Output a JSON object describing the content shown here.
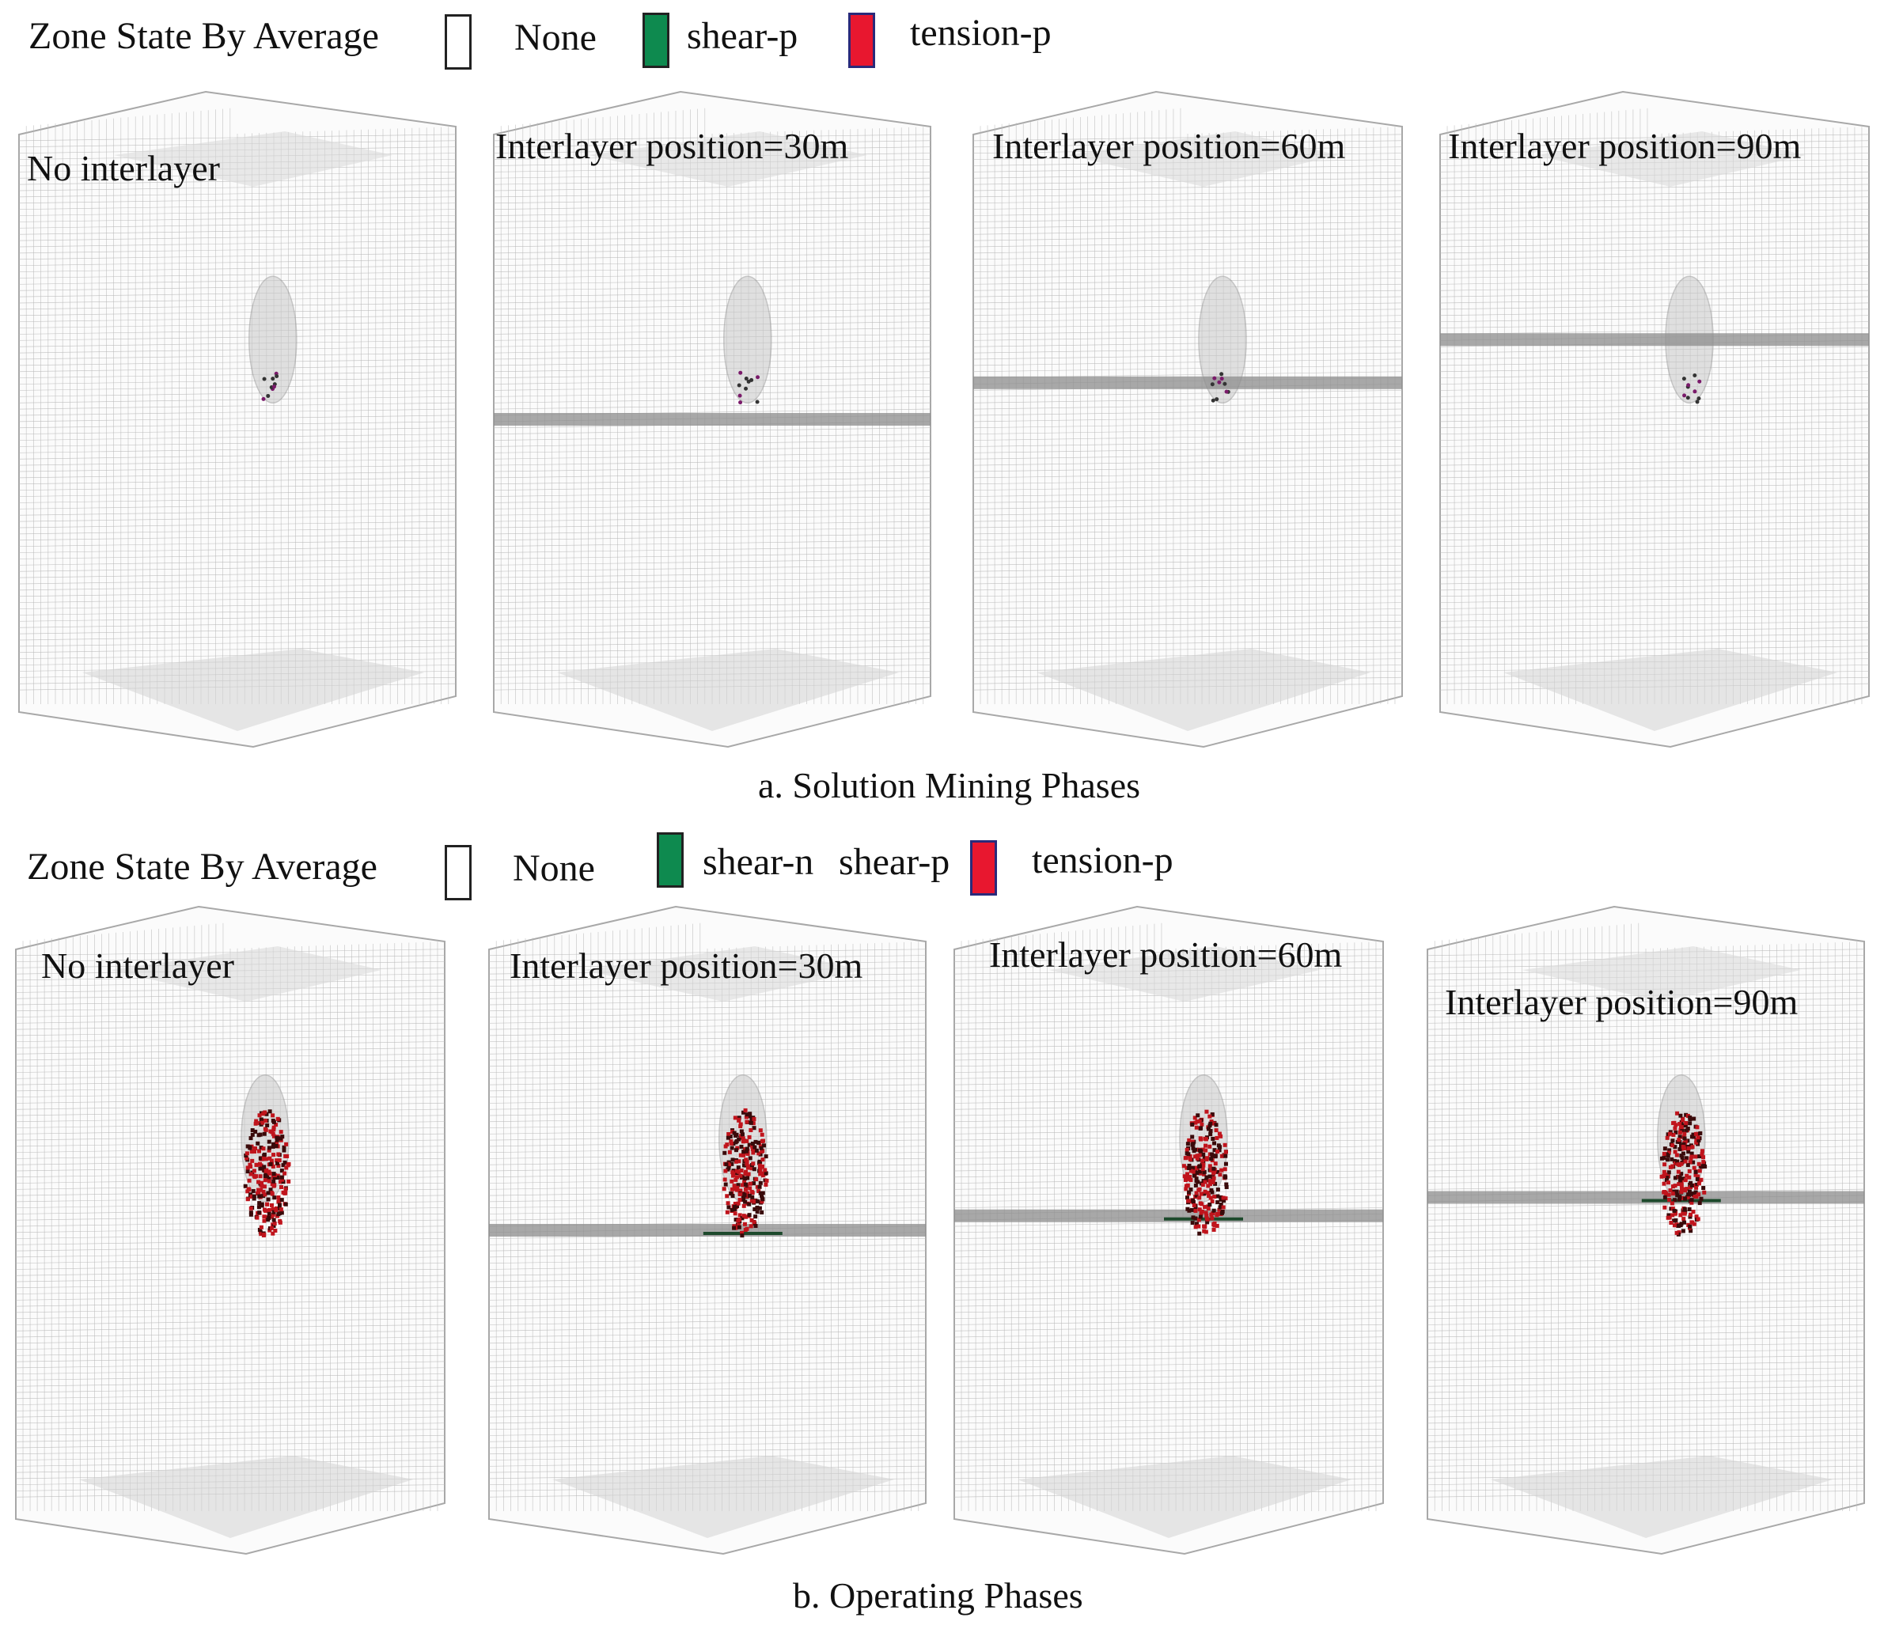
{
  "row_a": {
    "legend": {
      "title": "Zone State By Average",
      "items": [
        {
          "label": "None",
          "color": "#ffffff"
        },
        {
          "label": "shear-p",
          "color": "#0e8a4f"
        },
        {
          "label": "tension-p",
          "color": "#e8172f"
        }
      ]
    },
    "panels": [
      {
        "label": "No interlayer",
        "interlayer": false,
        "damage": "sparse"
      },
      {
        "label": "Interlayer position=30m",
        "interlayer": true,
        "damage": "sparse"
      },
      {
        "label": "Interlayer position=60m",
        "interlayer": true,
        "damage": "sparse"
      },
      {
        "label": "Interlayer position=90m",
        "interlayer": true,
        "damage": "sparse"
      }
    ],
    "caption": "a. Solution Mining Phases"
  },
  "row_b": {
    "legend": {
      "title": "Zone State By Average",
      "items": [
        {
          "label": "None",
          "color": "#ffffff"
        },
        {
          "label": "shear-n",
          "color": "#0e8a4f"
        },
        {
          "label": "shear-p",
          "color": ""
        },
        {
          "label": "tension-p",
          "color": "#e8172f"
        }
      ]
    },
    "panels": [
      {
        "label": "No interlayer",
        "interlayer": false,
        "damage": "dense"
      },
      {
        "label": "Interlayer position=30m",
        "interlayer": true,
        "damage": "dense"
      },
      {
        "label": "Interlayer position=60m",
        "interlayer": true,
        "damage": "dense"
      },
      {
        "label": "Interlayer position=90m",
        "interlayer": true,
        "damage": "dense"
      }
    ],
    "caption": "b. Operating Phases"
  },
  "colors": {
    "mesh": "#b9b9b9",
    "interlayer_band": "#8c8c8c",
    "damage_red": "#c0141c",
    "damage_dark": "#3a0a0a",
    "interlayer_marker": "#1d4a2c"
  }
}
